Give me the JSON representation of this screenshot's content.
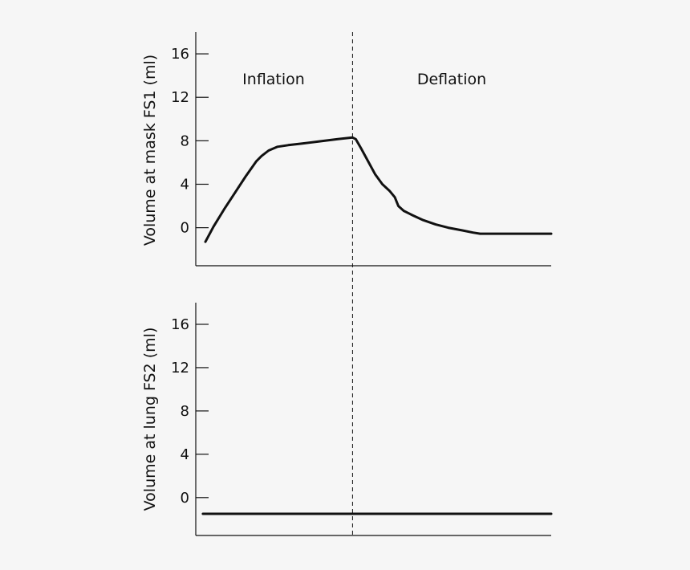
{
  "colors": {
    "background": "#f6f6f6",
    "ink": "#111111"
  },
  "chart_data": [
    {
      "type": "line",
      "ylabel": "Volume at mask FS1 (ml)",
      "xlabel": "",
      "ylim": [
        -3.5,
        18
      ],
      "yticks": [
        0,
        4,
        8,
        12,
        16
      ],
      "x_range": [
        0,
        10
      ],
      "grid": false,
      "divider_x": 4.41,
      "phase_labels": [
        "Inflation",
        "Deflation"
      ],
      "series": [
        {
          "x": [
            0.27,
            0.5,
            0.8,
            1.1,
            1.4,
            1.7,
            1.85,
            2.05,
            2.3,
            2.6,
            3.0,
            3.5,
            4.0,
            4.41,
            4.5,
            4.65,
            4.85,
            5.05,
            5.25,
            5.45,
            5.6,
            5.7,
            5.85,
            6.1,
            6.4,
            6.75,
            7.1,
            7.5,
            7.8,
            8.0,
            8.5,
            9.0,
            9.5,
            10.0
          ],
          "y": [
            -1.3,
            0.1,
            1.7,
            3.2,
            4.7,
            6.1,
            6.6,
            7.1,
            7.45,
            7.6,
            7.75,
            7.95,
            8.15,
            8.3,
            8.15,
            7.3,
            6.1,
            4.9,
            4.0,
            3.4,
            2.8,
            2.0,
            1.55,
            1.15,
            0.7,
            0.3,
            0.0,
            -0.25,
            -0.45,
            -0.55,
            -0.55,
            -0.55,
            -0.55,
            -0.55
          ]
        }
      ]
    },
    {
      "type": "line",
      "ylabel": "Volume at lung FS2 (ml)",
      "xlabel": "",
      "ylim": [
        -3.5,
        18
      ],
      "yticks": [
        0,
        4,
        8,
        12,
        16
      ],
      "x_range": [
        0,
        10
      ],
      "grid": false,
      "divider_x": 4.41,
      "phase_labels": [],
      "series": [
        {
          "x": [
            0.2,
            10.0
          ],
          "y": [
            -1.5,
            -1.5
          ]
        }
      ]
    }
  ]
}
